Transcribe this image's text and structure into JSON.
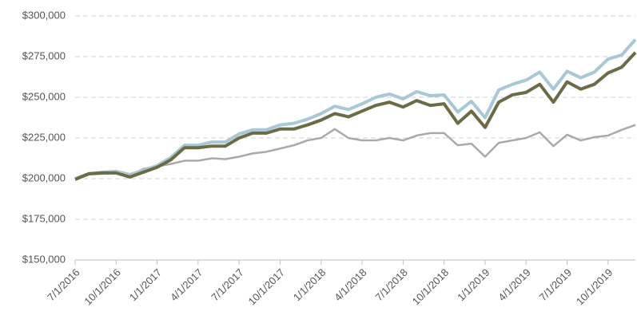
{
  "chart_data": {
    "type": "line",
    "categories": [
      "7/1/2016",
      null,
      null,
      "10/1/2016",
      null,
      null,
      "1/1/2017",
      null,
      null,
      "4/1/2017",
      null,
      null,
      "7/1/2017",
      null,
      null,
      "10/1/2017",
      null,
      null,
      "1/1/2018",
      null,
      null,
      "4/1/2018",
      null,
      null,
      "7/1/2018",
      null,
      null,
      "10/1/2018",
      null,
      null,
      "1/1/2019",
      null,
      null,
      "4/1/2019",
      null,
      null,
      "7/1/2019",
      null,
      null,
      "10/1/2019",
      null,
      null
    ],
    "series": [
      {
        "color": "#a9a9a9",
        "values": [
          200000,
          202500,
          203000,
          203500,
          202000,
          206000,
          207500,
          209000,
          211000,
          211000,
          212500,
          212000,
          213500,
          215500,
          216500,
          218500,
          220500,
          223500,
          225000,
          230500,
          225000,
          223500,
          223500,
          225000,
          223500,
          226500,
          228000,
          228000,
          220500,
          221500,
          213500,
          222000,
          223500,
          225000,
          228500,
          220000,
          227000,
          223500,
          225500,
          226500,
          230000,
          233000
        ]
      },
      {
        "color": "#a7c8d5",
        "values": [
          200000,
          203000,
          204000,
          204500,
          202500,
          205000,
          208000,
          213000,
          220500,
          220500,
          222500,
          222500,
          227500,
          230000,
          230000,
          233000,
          234000,
          236500,
          240000,
          244500,
          242500,
          246000,
          250000,
          252000,
          249000,
          253500,
          251000,
          251500,
          241000,
          247500,
          237500,
          254500,
          258000,
          260500,
          265500,
          255000,
          266000,
          262000,
          265500,
          273500,
          276000,
          285500
        ]
      },
      {
        "color": "#6b6c45",
        "values": [
          199500,
          203000,
          203500,
          203500,
          201000,
          204000,
          207000,
          211500,
          219000,
          219000,
          220000,
          220000,
          225000,
          228000,
          228000,
          230500,
          230500,
          233000,
          236000,
          240000,
          238000,
          241500,
          245000,
          247000,
          244000,
          248000,
          245000,
          246000,
          234000,
          241500,
          231500,
          247000,
          251500,
          253000,
          258000,
          247000,
          259500,
          255000,
          258000,
          265000,
          268500,
          277500
        ]
      }
    ],
    "ylim": [
      150000,
      300000
    ],
    "yticks": [
      {
        "value": 150000,
        "label": "$150,000"
      },
      {
        "value": 175000,
        "label": "$175,000"
      },
      {
        "value": 200000,
        "label": "$200,000"
      },
      {
        "value": 225000,
        "label": "$225,000"
      },
      {
        "value": 250000,
        "label": "$250,000"
      },
      {
        "value": 275000,
        "label": "$275,000"
      },
      {
        "value": 300000,
        "label": "$300,000"
      }
    ],
    "grid": true
  }
}
